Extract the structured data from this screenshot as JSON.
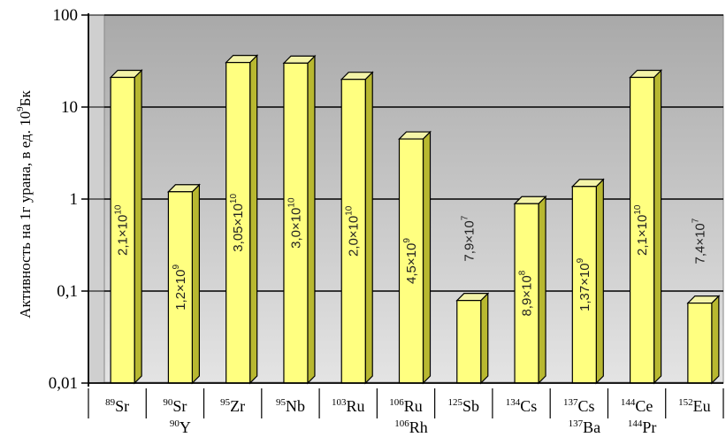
{
  "chart_data": {
    "type": "bar",
    "title": "",
    "xlabel": "",
    "ylabel": "Активность на 1г урана, в ед. 10",
    "ylabel_sup": "9",
    "ylabel_suffix": "Бк",
    "yscale": "log",
    "ylim": [
      0.01,
      100
    ],
    "yticks": [
      "0,01",
      "0,1",
      "1",
      "10",
      "100"
    ],
    "grid": true,
    "legend": "none",
    "colors": {
      "bar_front": "#ffff80",
      "bar_side": "#b8b830",
      "bar_top": "#f4f4a8",
      "plot_bg_top": "#a9a9a9",
      "plot_bg_bottom": "#e4e4e4",
      "grid": "#000000"
    },
    "categories": [
      {
        "lines": [
          {
            "sup": "89",
            "sym": "Sr"
          }
        ]
      },
      {
        "lines": [
          {
            "sup": "90",
            "sym": "Sr"
          },
          {
            "sup": "90",
            "sym": "Y"
          }
        ]
      },
      {
        "lines": [
          {
            "sup": "95",
            "sym": "Zr"
          }
        ]
      },
      {
        "lines": [
          {
            "sup": "95",
            "sym": "Nb"
          }
        ]
      },
      {
        "lines": [
          {
            "sup": "103",
            "sym": "Ru"
          }
        ]
      },
      {
        "lines": [
          {
            "sup": "106",
            "sym": "Ru"
          },
          {
            "sup": "106",
            "sym": "Rh"
          }
        ]
      },
      {
        "lines": [
          {
            "sup": "125",
            "sym": "Sb"
          }
        ]
      },
      {
        "lines": [
          {
            "sup": "134",
            "sym": "Cs"
          }
        ]
      },
      {
        "lines": [
          {
            "sup": "137",
            "sym": "Cs"
          },
          {
            "sup": "137",
            "sym": "Ba"
          }
        ]
      },
      {
        "lines": [
          {
            "sup": "144",
            "sym": "Ce"
          },
          {
            "sup": "144",
            "sym": "Pr"
          }
        ]
      },
      {
        "lines": [
          {
            "sup": "152",
            "sym": "Eu"
          }
        ]
      }
    ],
    "values": [
      21,
      1.2,
      30.5,
      30,
      20,
      4.5,
      0.079,
      0.89,
      1.37,
      21,
      0.074
    ],
    "data_labels": [
      {
        "mant": "2,1×10",
        "exp": "10"
      },
      {
        "mant": "1,2×10",
        "exp": "9"
      },
      {
        "mant": "3,05×10",
        "exp": "10"
      },
      {
        "mant": "3,0×10",
        "exp": "10"
      },
      {
        "mant": "2,0×10",
        "exp": "10"
      },
      {
        "mant": "4,5×10",
        "exp": "9"
      },
      {
        "mant": "7,9×10",
        "exp": "7"
      },
      {
        "mant": "8,9×10",
        "exp": "8"
      },
      {
        "mant": "1,37×10",
        "exp": "9"
      },
      {
        "mant": "2,1×10",
        "exp": "10"
      },
      {
        "mant": "7,4×10",
        "exp": "7"
      }
    ]
  }
}
